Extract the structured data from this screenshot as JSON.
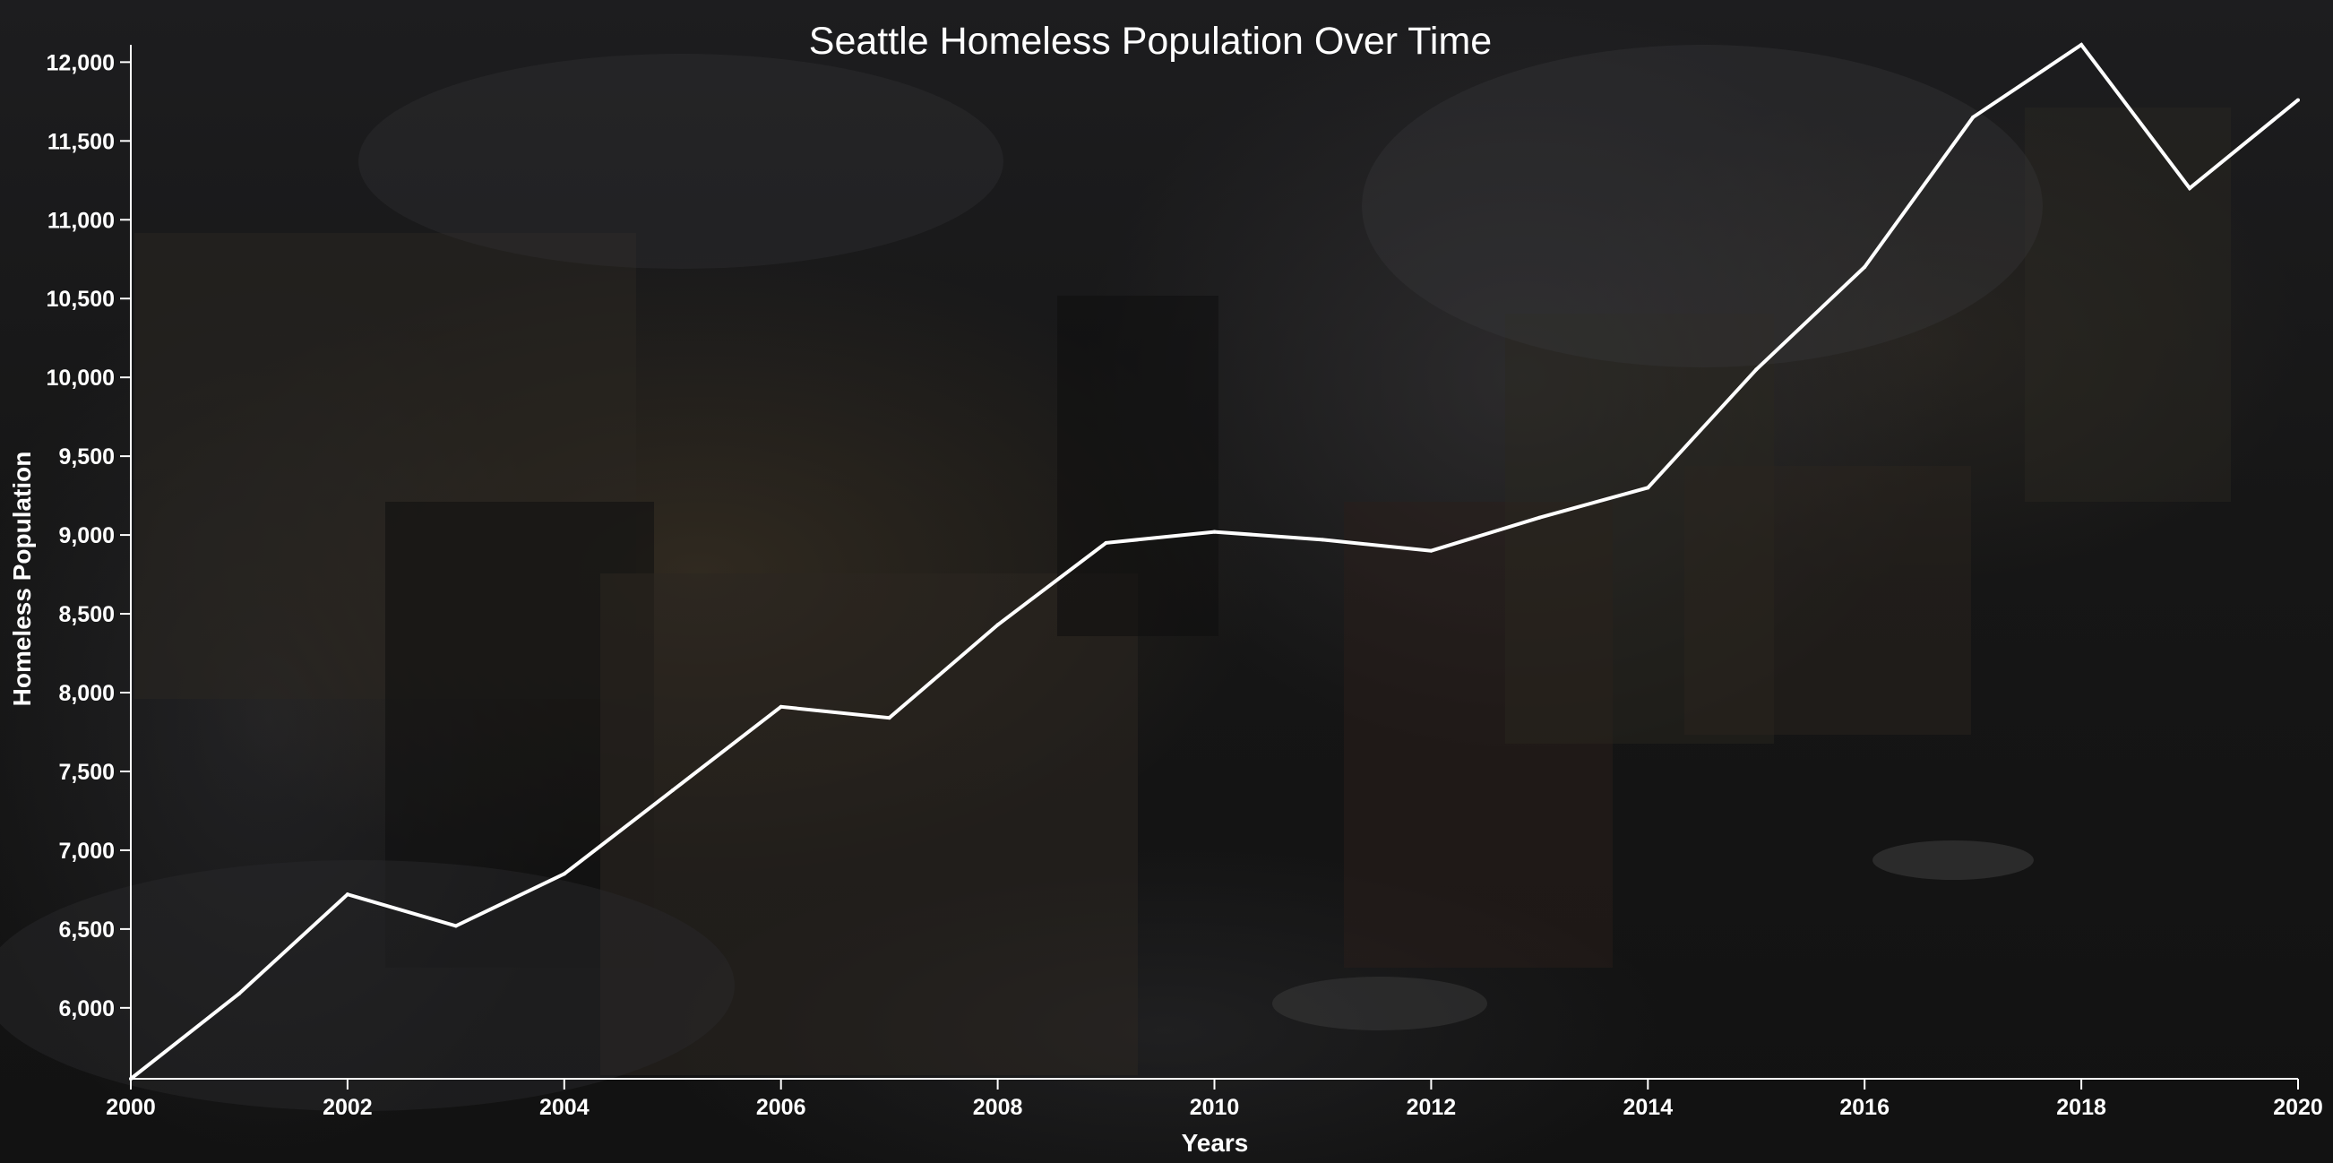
{
  "chart_data": {
    "type": "line",
    "title": "Seattle Homeless Population Over Time",
    "xlabel": "Years",
    "ylabel": "Homeless Population",
    "xlim": [
      2000,
      2020
    ],
    "ylim": [
      5550,
      12110
    ],
    "x_ticks": [
      "2000",
      "2002",
      "2004",
      "2006",
      "2008",
      "2010",
      "2012",
      "2014",
      "2016",
      "2018",
      "2020"
    ],
    "y_ticks": [
      "6,000",
      "6,500",
      "7,000",
      "7,500",
      "8,000",
      "8,500",
      "9,000",
      "9,500",
      "10,000",
      "10,500",
      "11,000",
      "11,500",
      "12,000"
    ],
    "grid": false,
    "legend": "none",
    "line_color": "#ffffff",
    "series": [
      {
        "x": [
          2000,
          2001,
          2002,
          2003,
          2004,
          2005,
          2006,
          2007,
          2008,
          2009,
          2010,
          2011,
          2012,
          2013,
          2014,
          2015,
          2016,
          2017,
          2018,
          2019,
          2020
        ],
        "values": [
          5550,
          6090,
          6720,
          6520,
          6850,
          7380,
          7910,
          7840,
          8430,
          8950,
          9020,
          8970,
          8900,
          9110,
          9300,
          10050,
          10700,
          11650,
          12110,
          11200,
          11760
        ]
      }
    ]
  }
}
